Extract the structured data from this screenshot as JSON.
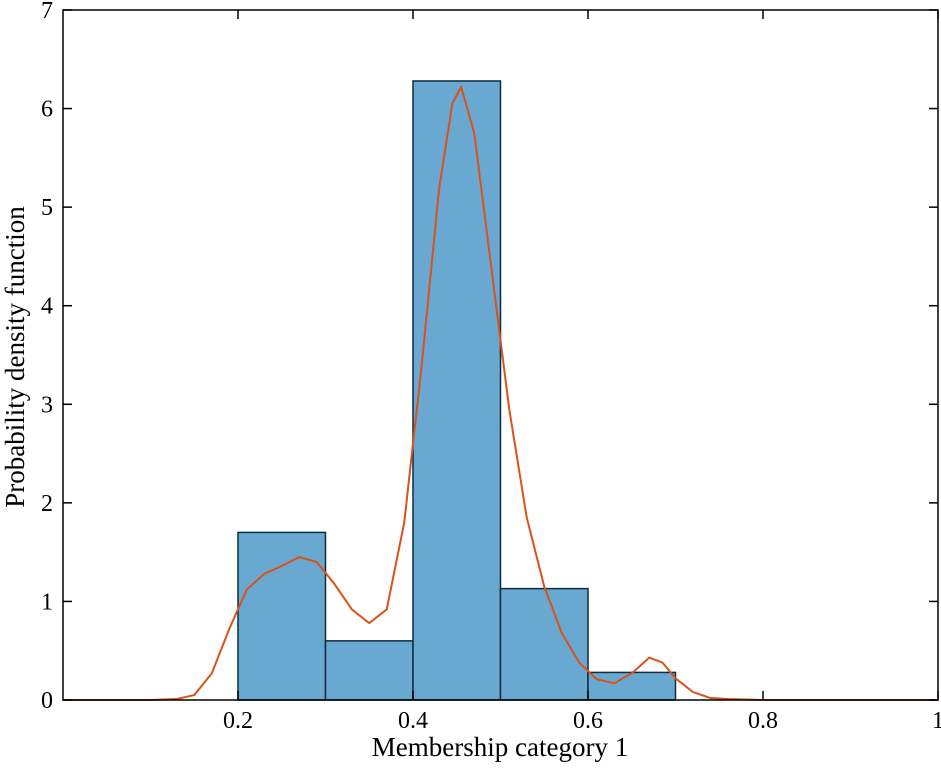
{
  "chart_data": {
    "type": "bar",
    "subtype": "histogram-with-density-line",
    "title": "",
    "xlabel": "Membership category 1",
    "ylabel": "Probability density function",
    "xlim": [
      0,
      1
    ],
    "ylim": [
      0,
      7
    ],
    "xticks": [
      0.2,
      0.4,
      0.6,
      0.8,
      1
    ],
    "xtick_labels": [
      "0.2",
      "0.4",
      "0.6",
      "0.8",
      "1"
    ],
    "yticks": [
      0,
      1,
      2,
      3,
      4,
      5,
      6,
      7
    ],
    "ytick_labels": [
      "0",
      "1",
      "2",
      "3",
      "4",
      "5",
      "6",
      "7"
    ],
    "grid": false,
    "legend": null,
    "bars": [
      {
        "x0": 0.2,
        "x1": 0.3,
        "height": 1.7
      },
      {
        "x0": 0.3,
        "x1": 0.4,
        "height": 0.6
      },
      {
        "x0": 0.4,
        "x1": 0.5,
        "height": 6.28
      },
      {
        "x0": 0.5,
        "x1": 0.6,
        "height": 1.13
      },
      {
        "x0": 0.6,
        "x1": 0.7,
        "height": 0.28
      }
    ],
    "line_series": {
      "name": "kernel-density-estimate",
      "points": [
        [
          0.0,
          0.0
        ],
        [
          0.1,
          0.0
        ],
        [
          0.13,
          0.01
        ],
        [
          0.15,
          0.05
        ],
        [
          0.17,
          0.27
        ],
        [
          0.19,
          0.72
        ],
        [
          0.21,
          1.12
        ],
        [
          0.23,
          1.28
        ],
        [
          0.25,
          1.36
        ],
        [
          0.27,
          1.45
        ],
        [
          0.29,
          1.4
        ],
        [
          0.31,
          1.18
        ],
        [
          0.33,
          0.92
        ],
        [
          0.35,
          0.78
        ],
        [
          0.37,
          0.92
        ],
        [
          0.39,
          1.8
        ],
        [
          0.41,
          3.4
        ],
        [
          0.43,
          5.2
        ],
        [
          0.445,
          6.05
        ],
        [
          0.455,
          6.22
        ],
        [
          0.47,
          5.75
        ],
        [
          0.49,
          4.35
        ],
        [
          0.51,
          2.95
        ],
        [
          0.53,
          1.85
        ],
        [
          0.55,
          1.15
        ],
        [
          0.57,
          0.68
        ],
        [
          0.59,
          0.38
        ],
        [
          0.61,
          0.21
        ],
        [
          0.63,
          0.17
        ],
        [
          0.65,
          0.27
        ],
        [
          0.67,
          0.43
        ],
        [
          0.685,
          0.38
        ],
        [
          0.7,
          0.22
        ],
        [
          0.72,
          0.08
        ],
        [
          0.74,
          0.02
        ],
        [
          0.76,
          0.01
        ],
        [
          0.8,
          0.0
        ],
        [
          0.9,
          0.0
        ],
        [
          1.0,
          0.0
        ]
      ]
    },
    "colors": {
      "bar_fill": "#69a8d0",
      "bar_edge": "#0d2c40",
      "line": "#d95319",
      "axis": "#000000",
      "text": "#000000",
      "background": "#ffffff"
    }
  }
}
